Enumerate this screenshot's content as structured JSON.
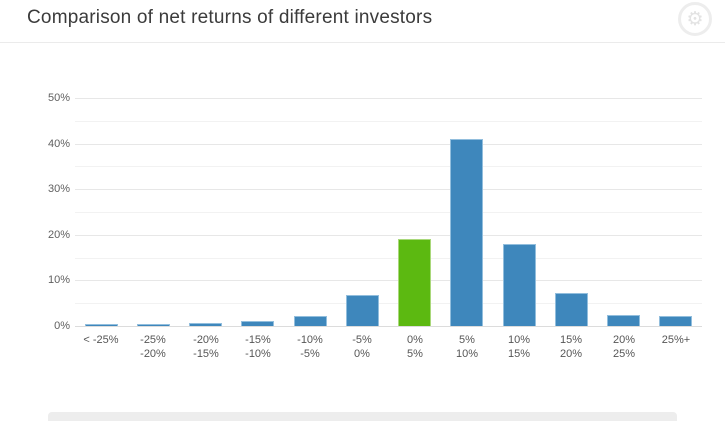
{
  "header": {
    "title": "Comparison of net returns of different investors"
  },
  "chart_data": {
    "type": "bar",
    "title": "Comparison of net returns of different investors",
    "xlabel": "",
    "ylabel": "",
    "ylim": [
      0,
      50
    ],
    "ytick_step_major": 10,
    "ytick_step_minor": 5,
    "ytick_labels": [
      "0%",
      "10%",
      "20%",
      "30%",
      "40%",
      "50%"
    ],
    "grid": true,
    "legend": "none",
    "categories": [
      [
        "< -25%"
      ],
      [
        "-25%",
        "-20%"
      ],
      [
        "-20%",
        "-15%"
      ],
      [
        "-15%",
        "-10%"
      ],
      [
        "-10%",
        "-5%"
      ],
      [
        "-5%",
        "0%"
      ],
      [
        "0%",
        "5%"
      ],
      [
        "5%",
        "10%"
      ],
      [
        "10%",
        "15%"
      ],
      [
        "15%",
        "20%"
      ],
      [
        "20%",
        "25%"
      ],
      [
        "25%+"
      ]
    ],
    "values": [
      0.3,
      0.4,
      0.6,
      1.1,
      2.1,
      6.8,
      19,
      41,
      17.9,
      7.2,
      2.4,
      2.1
    ],
    "highlight_index": 6,
    "colors": {
      "bar_fill": "#3e87bc",
      "bar_border": "#92bedd",
      "highlight_fill": "#5cb911",
      "highlight_border": "#a9d87a",
      "grid_major": "#e7e7e7",
      "grid_minor": "#f2f2f2",
      "axis_line": "#dcdcdc",
      "title_text": "#3b3b3b",
      "label_text": "#565656"
    }
  }
}
